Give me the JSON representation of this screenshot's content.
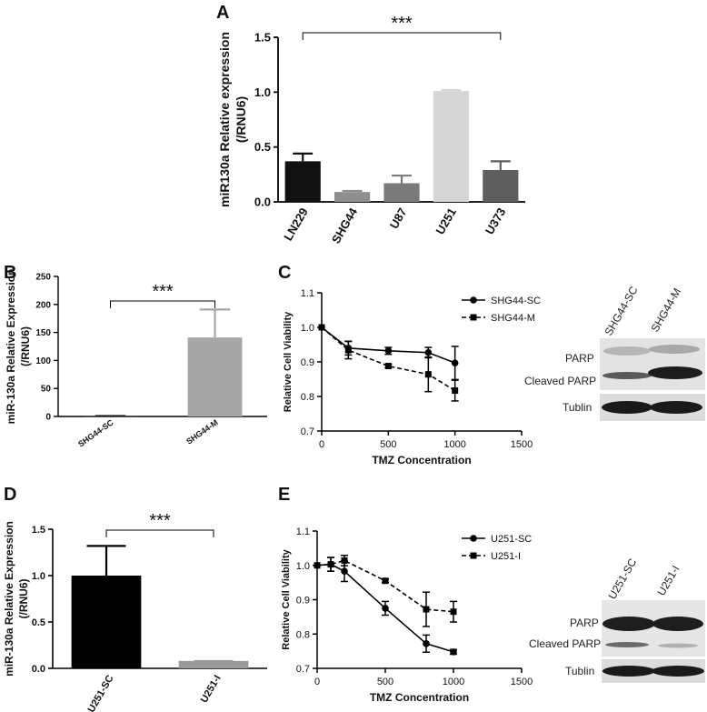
{
  "chart_data": [
    {
      "panel": "A",
      "type": "bar",
      "ylabel": "miR130a Relative expression",
      "ylabel2": "(/RNU6)",
      "categories": [
        "LN229",
        "SHG44",
        "U87",
        "U251",
        "U373"
      ],
      "values": [
        0.37,
        0.09,
        0.17,
        1.01,
        0.29
      ],
      "errors": [
        0.07,
        0.01,
        0.07,
        0.01,
        0.08
      ],
      "colors": [
        "#111111",
        "#8f8f8f",
        "#7a7a7a",
        "#d6d6d6",
        "#5e5e5e"
      ],
      "ylim": [
        0,
        1.5
      ],
      "yticks": [
        "0.0",
        "0.5",
        "1.0",
        "1.5"
      ],
      "significance": "***"
    },
    {
      "panel": "B",
      "type": "bar",
      "ylabel": "miR-130a Relative Expression",
      "ylabel2": "(/RNU6)",
      "categories": [
        "SHG44-SC",
        "SHG44-M"
      ],
      "values": [
        1,
        141
      ],
      "errors": [
        0,
        50
      ],
      "colors": [
        "#222222",
        "#a6a6a6"
      ],
      "ylim": [
        0,
        250
      ],
      "yticks": [
        "0",
        "50",
        "100",
        "150",
        "200",
        "250"
      ],
      "significance": "***"
    },
    {
      "panel": "C",
      "type": "line",
      "ylabel": "Relative Cell Viability",
      "xlabel": "TMZ Concentration",
      "xlim": [
        0,
        1500
      ],
      "ylim": [
        0.7,
        1.1
      ],
      "xticks": [
        "0",
        "500",
        "1000",
        "1500"
      ],
      "yticks": [
        "0.7",
        "0.8",
        "0.9",
        "1.0",
        "1.1"
      ],
      "series": [
        {
          "name": "SHG44-SC",
          "marker": "circle",
          "dash": false,
          "x": [
            0,
            200,
            500,
            800,
            1000
          ],
          "y": [
            1.0,
            0.94,
            0.932,
            0.927,
            0.897
          ],
          "err": [
            0.0,
            0.02,
            0.01,
            0.015,
            0.048
          ]
        },
        {
          "name": "SHG44-M",
          "marker": "square",
          "dash": true,
          "x": [
            0,
            200,
            500,
            800,
            1000
          ],
          "y": [
            1.0,
            0.934,
            0.888,
            0.864,
            0.817
          ],
          "err": [
            0.0,
            0.025,
            0.005,
            0.05,
            0.03
          ]
        }
      ]
    },
    {
      "panel": "D",
      "type": "bar",
      "ylabel": "miR-130a Relative Expression",
      "ylabel2": "(/RNU6)",
      "categories": [
        "U251-SC",
        "U251-I"
      ],
      "values": [
        1.0,
        0.08
      ],
      "errors": [
        0.32,
        0.0
      ],
      "colors": [
        "#000000",
        "#9a9a9a"
      ],
      "ylim": [
        0,
        1.5
      ],
      "yticks": [
        "0.0",
        "0.5",
        "1.0",
        "1.5"
      ],
      "significance": "***"
    },
    {
      "panel": "E",
      "type": "line",
      "ylabel": "Relative Cell Viability",
      "xlabel": "TMZ Concentration",
      "xlim": [
        0,
        1500
      ],
      "ylim": [
        0.7,
        1.1
      ],
      "xticks": [
        "0",
        "500",
        "1000",
        "1500"
      ],
      "yticks": [
        "0.7",
        "0.8",
        "0.9",
        "1.0",
        "1.1"
      ],
      "series": [
        {
          "name": "U251-SC",
          "marker": "circle",
          "dash": false,
          "x": [
            0,
            100,
            200,
            500,
            800,
            1000
          ],
          "y": [
            1.0,
            1.003,
            0.983,
            0.875,
            0.772,
            0.748
          ],
          "err": [
            0.0,
            0.02,
            0.03,
            0.02,
            0.025,
            0.007
          ]
        },
        {
          "name": "U251-I",
          "marker": "square",
          "dash": true,
          "x": [
            0,
            100,
            200,
            500,
            800,
            1000
          ],
          "y": [
            1.0,
            1.003,
            1.014,
            0.955,
            0.872,
            0.865
          ],
          "err": [
            0.0,
            0.02,
            0.015,
            0.005,
            0.05,
            0.03
          ]
        }
      ]
    }
  ],
  "blots": [
    {
      "panel": "C",
      "lanes": [
        "SHG44-SC",
        "SHG44-M"
      ],
      "bands": [
        "PARP",
        "Cleaved PARP",
        "Tublin"
      ]
    },
    {
      "panel": "E",
      "lanes": [
        "U251-SC",
        "U251-I"
      ],
      "bands": [
        "PARP",
        "Cleaved PARP",
        "Tublin"
      ]
    }
  ]
}
